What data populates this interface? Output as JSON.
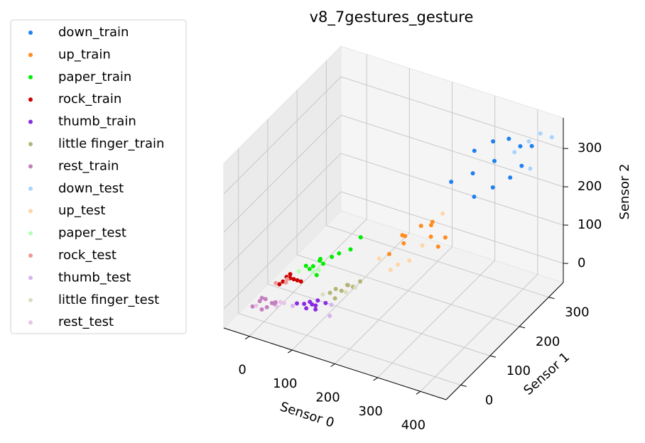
{
  "chart_data": {
    "type": "scatter3d",
    "title": "v8_7gestures_gesture",
    "xlabel": "Sensor 0",
    "ylabel": "Sensor 1",
    "zlabel": "Sensor 2",
    "xlim": [
      -60,
      460
    ],
    "ylim": [
      -50,
      350
    ],
    "zlim": [
      -50,
      380
    ],
    "xticks": [
      0,
      100,
      200,
      300,
      400
    ],
    "yticks": [
      0,
      100,
      200,
      300
    ],
    "zticks": [
      0,
      100,
      200,
      300
    ],
    "grid": true,
    "legend": "outside left",
    "series": [
      {
        "name": "down_train",
        "color": "#1f80f0",
        "x": [
          300,
          330,
          360,
          380,
          340,
          310,
          370,
          400,
          350,
          320,
          390,
          280
        ],
        "y": [
          280,
          300,
          310,
          320,
          290,
          260,
          300,
          330,
          270,
          250,
          310,
          230
        ],
        "z": [
          290,
          310,
          320,
          300,
          270,
          250,
          230,
          300,
          220,
          200,
          260,
          240
        ]
      },
      {
        "name": "up_train",
        "color": "#ff8c1f",
        "x": [
          200,
          230,
          250,
          260,
          210,
          240,
          270,
          220,
          190,
          280
        ],
        "y": [
          180,
          200,
          210,
          190,
          170,
          220,
          200,
          160,
          150,
          210
        ],
        "z": [
          110,
          130,
          140,
          120,
          100,
          120,
          90,
          130,
          80,
          110
        ]
      },
      {
        "name": "paper_train",
        "color": "#00ee00",
        "x": [
          50,
          60,
          70,
          80,
          55,
          65,
          75,
          90,
          100,
          120,
          130
        ],
        "y": [
          70,
          80,
          90,
          85,
          75,
          95,
          70,
          100,
          110,
          120,
          140
        ],
        "z": [
          60,
          55,
          70,
          65,
          50,
          60,
          45,
          75,
          80,
          90,
          110
        ]
      },
      {
        "name": "rock_train",
        "color": "#cc0000",
        "x": [
          10,
          20,
          30,
          15,
          25,
          35,
          5,
          20
        ],
        "y": [
          50,
          60,
          70,
          55,
          65,
          75,
          45,
          60
        ],
        "z": [
          20,
          25,
          15,
          30,
          20,
          10,
          15,
          35
        ]
      },
      {
        "name": "thumb_train",
        "color": "#8a2be2",
        "x": [
          80,
          90,
          100,
          110,
          70,
          85,
          95,
          105,
          120
        ],
        "y": [
          20,
          25,
          30,
          15,
          10,
          20,
          25,
          30,
          35
        ],
        "z": [
          10,
          15,
          5,
          10,
          15,
          0,
          10,
          20,
          15
        ]
      },
      {
        "name": "little finger_train",
        "color": "#b5b577",
        "x": [
          120,
          130,
          140,
          150,
          160,
          135,
          145,
          170
        ],
        "y": [
          50,
          55,
          60,
          65,
          70,
          45,
          75,
          80
        ],
        "z": [
          30,
          40,
          35,
          50,
          45,
          25,
          40,
          55
        ]
      },
      {
        "name": "rest_train",
        "color": "#c47fbf",
        "x": [
          -20,
          -10,
          0,
          10,
          20,
          -5,
          5,
          15,
          25
        ],
        "y": [
          -10,
          0,
          5,
          -5,
          10,
          0,
          -15,
          5,
          0
        ],
        "z": [
          -10,
          0,
          5,
          -5,
          0,
          10,
          -5,
          0,
          5
        ]
      },
      {
        "name": "down_test",
        "color": "#a8d4ff",
        "x": [
          420,
          400,
          440,
          380,
          410
        ],
        "y": [
          330,
          320,
          340,
          300,
          310
        ],
        "z": [
          340,
          320,
          330,
          300,
          260
        ]
      },
      {
        "name": "up_test",
        "color": "#ffd5a8",
        "x": [
          180,
          210,
          200,
          240,
          260,
          230
        ],
        "y": [
          130,
          150,
          140,
          190,
          230,
          160
        ],
        "z": [
          80,
          60,
          50,
          90,
          150,
          70
        ]
      },
      {
        "name": "paper_test",
        "color": "#b5ffb5",
        "x": [
          40,
          60,
          80
        ],
        "y": [
          60,
          80,
          70
        ],
        "z": [
          50,
          40,
          60
        ]
      },
      {
        "name": "rock_test",
        "color": "#f09898",
        "x": [
          0,
          20,
          10
        ],
        "y": [
          40,
          50,
          60
        ],
        "z": [
          20,
          30,
          10
        ]
      },
      {
        "name": "thumb_test",
        "color": "#d8b3f2",
        "x": [
          60,
          130,
          140
        ],
        "y": [
          10,
          40,
          20
        ],
        "z": [
          5,
          10,
          0
        ]
      },
      {
        "name": "little finger_test",
        "color": "#dcdcbc",
        "x": [
          110,
          150,
          165
        ],
        "y": [
          40,
          60,
          70
        ],
        "z": [
          30,
          35,
          45
        ]
      },
      {
        "name": "rest_test",
        "color": "#e8c3e6",
        "x": [
          30,
          40,
          -15,
          35
        ],
        "y": [
          0,
          10,
          -5,
          5
        ],
        "z": [
          0,
          5,
          -10,
          10
        ]
      }
    ]
  }
}
